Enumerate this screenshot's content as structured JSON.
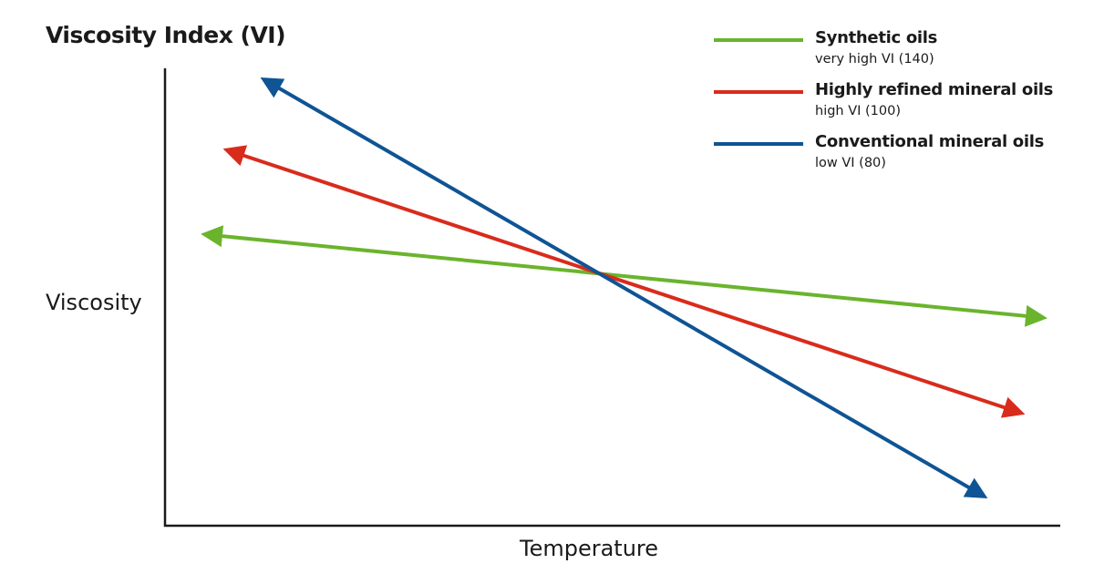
{
  "title": "Viscosity Index (VI)",
  "y_axis_label": "Viscosity",
  "x_axis_label": "Temperature",
  "legend": [
    {
      "name": "Synthetic oils",
      "detail": "very high VI (140)",
      "color": "#6ab42d"
    },
    {
      "name": "Highly refined mineral oils",
      "detail": "high VI (100)",
      "color": "#d92b1c"
    },
    {
      "name": "Conventional mineral oils",
      "detail": "low VI (80)",
      "color": "#0f5494"
    }
  ],
  "axis_color": "#1a1a1a"
}
